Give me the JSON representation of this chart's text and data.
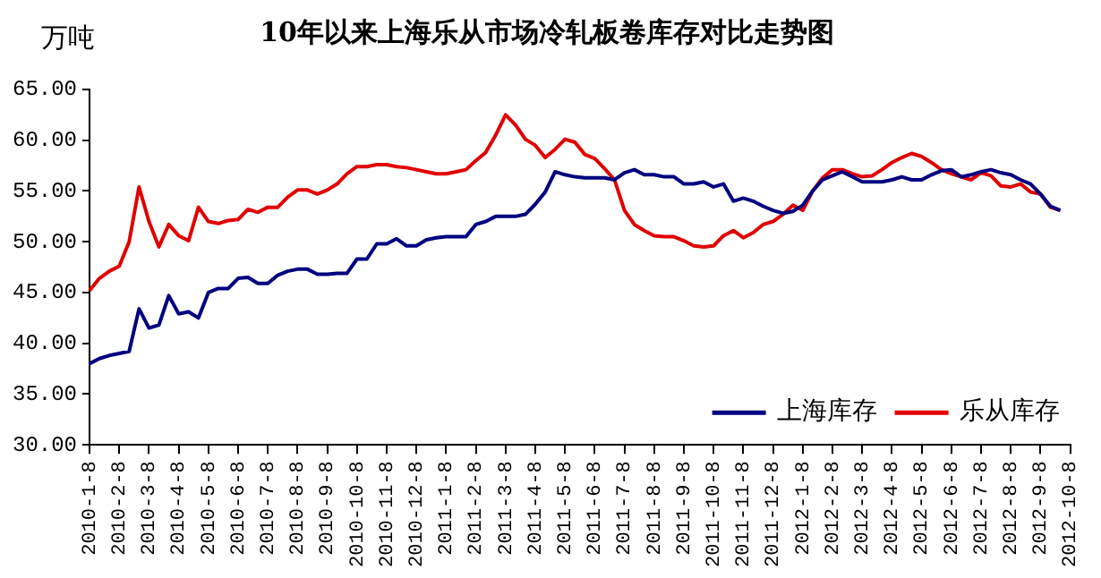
{
  "chart_data": {
    "type": "line",
    "title": "10年以来上海乐从市场冷轧板卷库存对比走势图",
    "ylabel": "万吨",
    "categories": [
      "2010-1-8",
      null,
      null,
      "2010-2-8",
      null,
      null,
      "2010-3-8",
      null,
      null,
      "2010-4-8",
      null,
      null,
      "2010-5-8",
      null,
      null,
      "2010-6-8",
      null,
      null,
      "2010-7-8",
      null,
      null,
      "2010-8-8",
      null,
      null,
      "2010-9-8",
      null,
      null,
      "2010-10-8",
      null,
      null,
      "2010-11-8",
      null,
      null,
      "2010-12-8",
      null,
      null,
      "2011-1-8",
      null,
      null,
      "2011-2-8",
      null,
      null,
      "2011-3-8",
      null,
      null,
      "2011-4-8",
      null,
      null,
      "2011-5-8",
      null,
      null,
      "2011-6-8",
      null,
      null,
      "2011-7-8",
      null,
      null,
      "2011-8-8",
      null,
      null,
      "2011-9-8",
      null,
      null,
      "2011-10-8",
      null,
      null,
      "2011-11-8",
      null,
      null,
      "2011-12-8",
      null,
      null,
      "2012-1-8",
      null,
      null,
      "2012-2-8",
      null,
      null,
      "2012-3-8",
      null,
      null,
      "2012-4-8",
      null,
      null,
      "2012-5-8",
      null,
      null,
      "2012-6-8",
      null,
      null,
      "2012-7-8",
      null,
      null,
      "2012-8-8",
      null,
      null,
      "2012-9-8",
      null,
      null,
      "2012-10-8"
    ],
    "series": [
      {
        "name": "上海库存",
        "color": "#000080",
        "values": [
          38.0,
          38.5,
          38.8,
          39.0,
          39.2,
          43.4,
          41.5,
          41.8,
          44.7,
          42.9,
          43.1,
          42.5,
          45.0,
          45.4,
          45.4,
          46.4,
          46.5,
          45.9,
          45.9,
          46.7,
          47.1,
          47.3,
          47.3,
          46.8,
          46.8,
          46.9,
          46.9,
          48.3,
          48.3,
          49.8,
          49.8,
          50.3,
          49.6,
          49.6,
          50.2,
          50.4,
          50.5,
          50.5,
          50.5,
          51.7,
          52.0,
          52.5,
          52.5,
          52.5,
          52.7,
          53.7,
          54.9,
          56.9,
          56.6,
          56.4,
          56.3,
          56.3,
          56.3,
          56.1,
          56.8,
          57.1,
          56.6,
          56.6,
          56.4,
          56.4,
          55.7,
          55.7,
          55.9,
          55.4,
          55.7,
          54.0,
          54.3,
          54.0,
          53.5,
          53.1,
          52.8,
          53.0,
          53.6,
          55.0,
          56.1,
          56.5,
          56.9,
          56.4,
          55.9,
          55.9,
          55.9,
          56.1,
          56.4,
          56.1,
          56.1,
          56.6,
          57.0,
          57.1,
          56.4,
          56.6,
          56.9,
          57.1,
          56.8,
          56.6,
          56.1,
          55.7,
          54.7,
          53.5,
          53.1,
          null
        ]
      },
      {
        "name": "乐从库存",
        "color": "#e00000",
        "values": [
          45.2,
          46.4,
          47.1,
          47.6,
          50.0,
          55.4,
          52.0,
          49.5,
          51.7,
          50.6,
          50.1,
          53.4,
          52.0,
          51.8,
          52.1,
          52.2,
          53.2,
          52.9,
          53.4,
          53.4,
          54.4,
          55.1,
          55.1,
          54.7,
          55.1,
          55.7,
          56.7,
          57.4,
          57.4,
          57.6,
          57.6,
          57.4,
          57.3,
          57.1,
          56.9,
          56.7,
          56.7,
          56.9,
          57.1,
          58.0,
          58.8,
          60.5,
          62.5,
          61.5,
          60.1,
          59.5,
          58.3,
          59.1,
          60.1,
          59.8,
          58.6,
          58.2,
          57.2,
          56.1,
          53.1,
          51.7,
          51.1,
          50.6,
          50.5,
          50.5,
          50.1,
          49.6,
          49.5,
          49.6,
          50.6,
          51.1,
          50.4,
          50.9,
          51.7,
          52.0,
          52.7,
          53.6,
          53.1,
          55.0,
          56.3,
          57.1,
          57.1,
          56.7,
          56.4,
          56.5,
          57.1,
          57.8,
          58.3,
          58.7,
          58.4,
          57.8,
          57.1,
          56.7,
          56.4,
          56.1,
          56.8,
          56.5,
          55.5,
          55.4,
          55.7,
          54.9,
          54.7,
          53.4,
          53.1,
          null
        ]
      }
    ],
    "ylim": [
      30,
      65
    ],
    "yticks": [
      {
        "value": 30,
        "label": "30.00"
      },
      {
        "value": 35,
        "label": "35.00"
      },
      {
        "value": 40,
        "label": "40.00"
      },
      {
        "value": 45,
        "label": "45.00"
      },
      {
        "value": 50,
        "label": "50.00"
      },
      {
        "value": 55,
        "label": "55.00"
      },
      {
        "value": 60,
        "label": "60.00"
      },
      {
        "value": 65,
        "label": "65.00"
      }
    ],
    "grid": false,
    "legend": "bottom right",
    "marker": "none",
    "line_style": "solid"
  }
}
